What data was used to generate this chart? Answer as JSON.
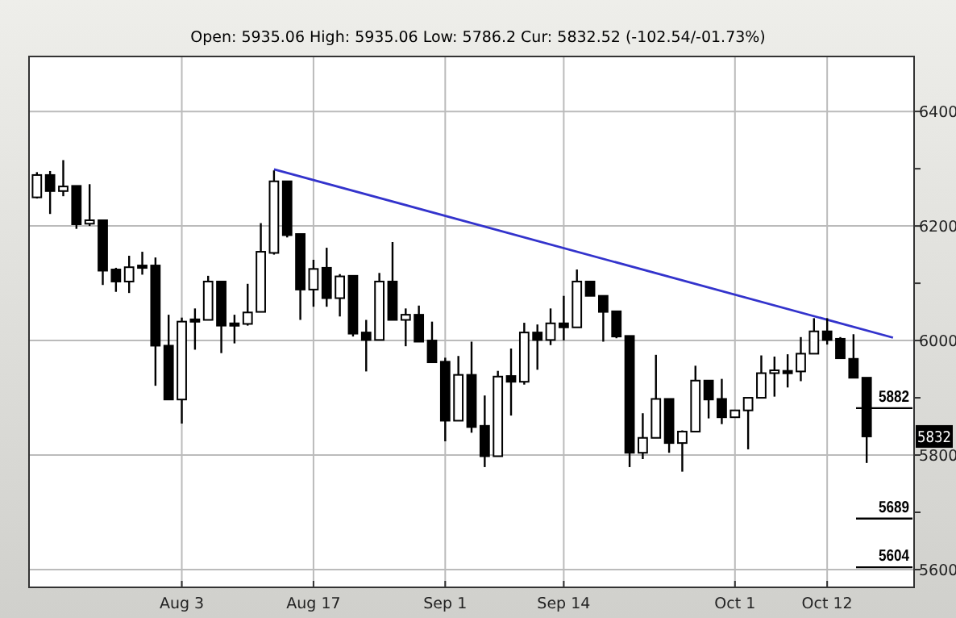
{
  "chart_data": {
    "type": "candlestick",
    "subtitle": "Open: 5935.06 High: 5935.06 Low: 5786.2 Cur: 5832.52 (-102.54/-01.73%)",
    "categories": [
      null,
      null,
      null,
      null,
      null,
      null,
      null,
      null,
      null,
      null,
      null,
      "Aug 3",
      null,
      null,
      null,
      null,
      null,
      null,
      null,
      null,
      null,
      "Aug 17",
      null,
      null,
      null,
      null,
      null,
      null,
      null,
      null,
      null,
      "Sep 1",
      null,
      null,
      null,
      null,
      null,
      null,
      null,
      null,
      "Sep 14",
      null,
      null,
      null,
      null,
      null,
      null,
      null,
      null,
      null,
      null,
      null,
      null,
      "Oct 1",
      null,
      null,
      null,
      null,
      null,
      null,
      "Oct 12",
      null,
      null,
      null,
      null,
      null
    ],
    "ohlc": [
      [
        6250,
        6294,
        6248,
        6289
      ],
      [
        6289,
        6296,
        6221,
        6261
      ],
      [
        6261,
        6315,
        6252,
        6269
      ],
      [
        6270,
        6270,
        6195,
        6203
      ],
      [
        6204,
        6273,
        6200,
        6210
      ],
      [
        6210,
        6210,
        6097,
        6122
      ],
      [
        6124,
        6127,
        6085,
        6103
      ],
      [
        6103,
        6148,
        6083,
        6128
      ],
      [
        6131,
        6155,
        6115,
        6127
      ],
      [
        6131,
        6145,
        5921,
        5991
      ],
      [
        5991,
        6045,
        5897,
        5897
      ],
      [
        5897,
        6040,
        5855,
        6033
      ],
      [
        6037,
        6056,
        5984,
        6033
      ],
      [
        6036,
        6113,
        6036,
        6103
      ],
      [
        6103,
        6103,
        5978,
        6026
      ],
      [
        6030,
        6045,
        5995,
        6026
      ],
      [
        6029,
        6099,
        6026,
        6049
      ],
      [
        6050,
        6205,
        6050,
        6155
      ],
      [
        6153,
        6297,
        6150,
        6278
      ],
      [
        6278,
        6278,
        6180,
        6184
      ],
      [
        6186,
        6186,
        6036,
        6089
      ],
      [
        6089,
        6141,
        6059,
        6125
      ],
      [
        6127,
        6162,
        6059,
        6074
      ],
      [
        6074,
        6116,
        6042,
        6112
      ],
      [
        6113,
        6113,
        6007,
        6012
      ],
      [
        6014,
        6036,
        5946,
        6001
      ],
      [
        6001,
        6118,
        6001,
        6103
      ],
      [
        6103,
        6172,
        6036,
        6036
      ],
      [
        6036,
        6056,
        5990,
        6045
      ],
      [
        6045,
        6061,
        5998,
        5998
      ],
      [
        6000,
        6033,
        5962,
        5962
      ],
      [
        5963,
        5970,
        5824,
        5860
      ],
      [
        5860,
        5973,
        5860,
        5940
      ],
      [
        5940,
        5998,
        5839,
        5849
      ],
      [
        5851,
        5904,
        5779,
        5798
      ],
      [
        5798,
        5947,
        5798,
        5937
      ],
      [
        5938,
        5986,
        5869,
        5928
      ],
      [
        5928,
        6031,
        5923,
        6014
      ],
      [
        6014,
        6028,
        5949,
        6001
      ],
      [
        6001,
        6056,
        5992,
        6030
      ],
      [
        6030,
        6078,
        6000,
        6023
      ],
      [
        6023,
        6124,
        6023,
        6103
      ],
      [
        6103,
        6103,
        6078,
        6078
      ],
      [
        6078,
        6078,
        5998,
        6050
      ],
      [
        6051,
        6051,
        6004,
        6007
      ],
      [
        6008,
        6008,
        5779,
        5804
      ],
      [
        5804,
        5873,
        5793,
        5830
      ],
      [
        5830,
        5975,
        5830,
        5898
      ],
      [
        5898,
        5898,
        5804,
        5821
      ],
      [
        5821,
        5843,
        5771,
        5841
      ],
      [
        5841,
        5956,
        5841,
        5930
      ],
      [
        5930,
        5930,
        5864,
        5897
      ],
      [
        5898,
        5933,
        5854,
        5866
      ],
      [
        5866,
        5878,
        5866,
        5878
      ],
      [
        5878,
        5900,
        5810,
        5900
      ],
      [
        5900,
        5974,
        5900,
        5943
      ],
      [
        5943,
        5972,
        5902,
        5948
      ],
      [
        5947,
        5976,
        5918,
        5945
      ],
      [
        5946,
        6006,
        5929,
        5977
      ],
      [
        5977,
        6039,
        5977,
        6016
      ],
      [
        6016,
        6039,
        5993,
        6001
      ],
      [
        6003,
        6006,
        5969,
        5969
      ],
      [
        5968,
        6011,
        5935,
        5935
      ],
      [
        5935.06,
        5935.06,
        5786.2,
        5832.52
      ],
      null,
      null
    ],
    "series": [
      {
        "type": "line",
        "color": "#3333cc",
        "values": [
          null,
          null,
          null,
          null,
          null,
          null,
          null,
          null,
          null,
          null,
          null,
          null,
          null,
          null,
          null,
          null,
          null,
          null,
          6299,
          null,
          null,
          null,
          null,
          null,
          null,
          null,
          null,
          null,
          null,
          null,
          null,
          null,
          null,
          null,
          null,
          null,
          null,
          null,
          null,
          null,
          null,
          null,
          null,
          null,
          null,
          null,
          null,
          null,
          null,
          null,
          null,
          null,
          null,
          null,
          null,
          null,
          null,
          null,
          null,
          null,
          null,
          null,
          null,
          null,
          null,
          6005
        ]
      }
    ],
    "ylim": [
      5569,
      6496
    ],
    "yticks": [
      5600,
      {
        "value": 5700,
        "label": null
      },
      5800,
      {
        "value": 5900,
        "label": null
      },
      6000,
      {
        "value": 6100,
        "label": null
      },
      6200,
      {
        "value": 6300,
        "label": null
      },
      6400
    ],
    "grid": true,
    "ref_lines": [
      {
        "axis": "y",
        "value": 5882,
        "label": "5882",
        "color": "#000000"
      },
      {
        "axis": "y",
        "value": 5689,
        "label": "5689",
        "color": "#000000"
      },
      {
        "axis": "y",
        "value": 5604,
        "label": "5604",
        "color": "#000000"
      }
    ],
    "annotations": [
      "5832"
    ]
  }
}
